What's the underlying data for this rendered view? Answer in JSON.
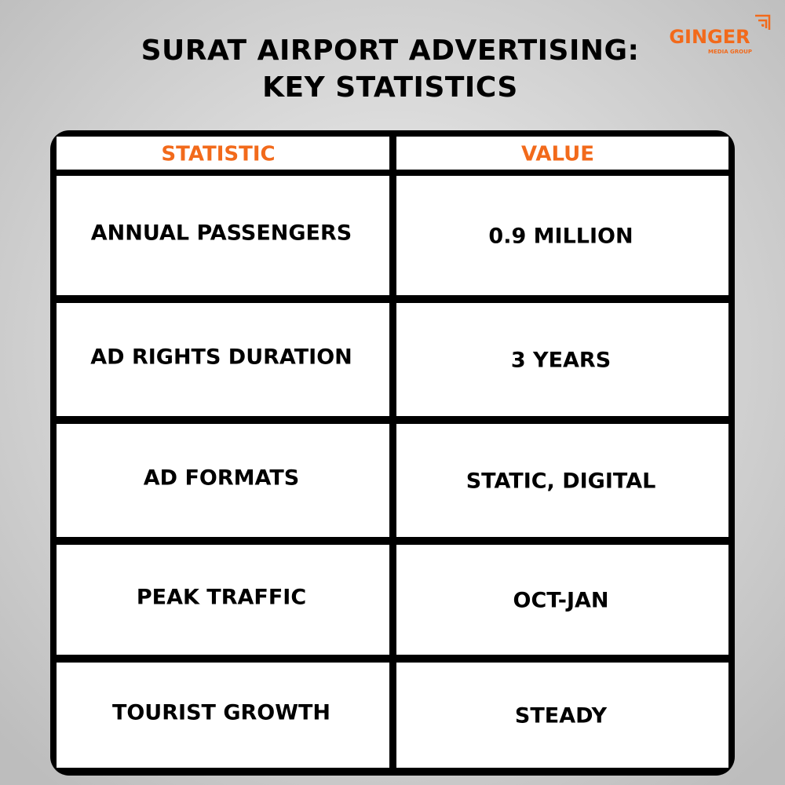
{
  "header": {
    "title": [
      "SURAT AIRPORT ADVERTISING:",
      "KEY STATISTICS"
    ],
    "logo": {
      "name": "GINGER",
      "tagline": "MEDIA GROUP"
    }
  },
  "table": {
    "columns": [
      "STATISTIC",
      "VALUE"
    ],
    "rows": [
      [
        "ANNUAL PASSENGERS",
        "0.9 MILLION"
      ],
      [
        "AD RIGHTS DURATION",
        "3 YEARS"
      ],
      [
        "AD FORMATS",
        "STATIC, DIGITAL"
      ],
      [
        "PEAK TRAFFIC",
        "OCT-JAN"
      ],
      [
        "TOURIST GROWTH",
        "STEADY"
      ]
    ]
  }
}
